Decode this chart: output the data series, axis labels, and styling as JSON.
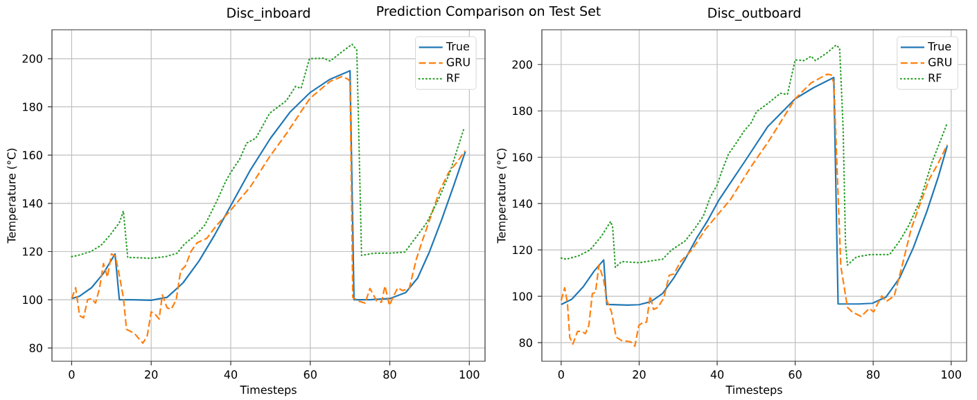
{
  "chart_data": [
    {
      "type": "other",
      "title": "Prediction Comparison on Test Set"
    },
    {
      "type": "line",
      "title": "Disc_inboard",
      "xlabel": "Timesteps",
      "ylabel": "Temperature (°C)",
      "xlim": [
        -4.95,
        103.95
      ],
      "ylim": [
        74.5,
        212
      ],
      "xticks": [
        0,
        20,
        40,
        60,
        80,
        100
      ],
      "yticks": [
        80,
        100,
        120,
        140,
        160,
        180,
        200
      ],
      "grid": true,
      "legend": "top right",
      "series": [
        {
          "name": "True",
          "color": "#1f77b4",
          "line_style": "solid",
          "x": [
            0,
            2,
            5,
            8,
            10.9,
            12,
            15,
            20,
            24,
            28,
            32,
            36,
            40,
            45,
            50,
            55,
            60,
            65,
            70,
            71,
            75,
            80,
            84,
            87,
            90,
            93,
            96,
            99
          ],
          "values": [
            100.5,
            101.5,
            105,
            111,
            119,
            100,
            100,
            99.8,
            101,
            107,
            116,
            127,
            139,
            154,
            167,
            178,
            186,
            191.5,
            195,
            100,
            100,
            100.5,
            103,
            109,
            120,
            133,
            147,
            161.5
          ]
        },
        {
          "name": "GRU",
          "color": "#ff7f0e",
          "line_style": "dashed",
          "x": [
            0,
            1,
            2,
            3,
            4,
            5,
            6,
            7,
            8,
            9,
            10,
            11,
            12,
            13,
            13.8,
            15.8,
            17.9,
            19,
            20,
            21,
            22,
            22.8,
            24,
            25,
            26.3,
            27.4,
            28.6,
            30,
            31.5,
            34,
            36.5,
            39.4,
            45,
            49.8,
            54,
            59.9,
            65,
            68,
            69.5,
            70,
            70.7,
            72,
            73.8,
            75,
            76.7,
            77.9,
            78.8,
            79.9,
            80.8,
            82,
            83.2,
            84.9,
            86.7,
            88.4,
            90.2,
            92.5,
            94.8,
            97.1,
            98.9
          ],
          "values": [
            100.5,
            105,
            93.4,
            92.5,
            100,
            100.5,
            98.6,
            104.7,
            115,
            109.4,
            119,
            118,
            110,
            101,
            87.7,
            86,
            82,
            85,
            95,
            94,
            92,
            102,
            96.7,
            96,
            100,
            112,
            114,
            120,
            123.6,
            125.5,
            131,
            136,
            147,
            159.4,
            168.9,
            183.5,
            190.6,
            192.6,
            191.5,
            190.6,
            101,
            99.5,
            98.6,
            104.7,
            99.5,
            99,
            105.7,
            97.6,
            101,
            105,
            103.8,
            104.7,
            117,
            125.5,
            134,
            145,
            152.8,
            157.5,
            161.8
          ]
        },
        {
          "name": "RF",
          "color": "#2ca02c",
          "line_style": "dotted",
          "x": [
            0,
            1.6,
            4.8,
            7.4,
            9.7,
            12,
            13,
            14.1,
            15.5,
            20,
            23.7,
            26.5,
            28.3,
            31.2,
            33.5,
            36.4,
            38.7,
            40,
            42.3,
            44,
            46.3,
            49.8,
            54,
            56.3,
            57.7,
            59.8,
            63.3,
            65,
            67.3,
            70.5,
            71.7,
            72.3,
            72.9,
            76,
            80,
            83.8,
            86.4,
            89.3,
            92.2,
            95.1,
            98.6
          ],
          "values": [
            117.9,
            118.4,
            120,
            122.6,
            126.9,
            132,
            136.8,
            117.5,
            117.5,
            117.2,
            117.9,
            119.3,
            123,
            126.9,
            131,
            140.6,
            149,
            152.8,
            158.5,
            165,
            167,
            177.4,
            182.6,
            188.5,
            187.7,
            200,
            200.2,
            199,
            202,
            206,
            203.6,
            162,
            118.4,
            119.3,
            119.3,
            119.8,
            125.5,
            132,
            141.5,
            152.8,
            170.8
          ]
        }
      ]
    },
    {
      "type": "line",
      "title": "Disc_outboard",
      "xlabel": "Timesteps",
      "ylabel": "Temperature (°C)",
      "xlim": [
        -4.95,
        103.95
      ],
      "ylim": [
        72,
        215
      ],
      "xticks": [
        0,
        20,
        40,
        60,
        80,
        100
      ],
      "yticks": [
        80,
        100,
        120,
        140,
        160,
        180,
        200
      ],
      "grid": true,
      "legend": "top right",
      "series": [
        {
          "name": "True",
          "color": "#1f77b4",
          "line_style": "solid",
          "x": [
            0,
            2.7,
            5.6,
            8.5,
            10.9,
            11.7,
            17,
            20,
            23,
            26,
            28.9,
            31.8,
            34.7,
            37.6,
            40.5,
            47.2,
            53,
            60,
            64.7,
            69.9,
            71,
            76.3,
            79.8,
            83.3,
            86.8,
            90.3,
            93.8,
            96.7,
            99
          ],
          "values": [
            96.5,
            98.7,
            104,
            111,
            115.7,
            96.5,
            96.2,
            96.4,
            97.7,
            101.2,
            108,
            116,
            125,
            132.8,
            141.7,
            158.5,
            173.3,
            185.2,
            190,
            194.4,
            96.7,
            96.7,
            97,
            99.7,
            108,
            121,
            136.8,
            151.6,
            165
          ]
        },
        {
          "name": "GRU",
          "color": "#ff7f0e",
          "line_style": "dashed",
          "x": [
            0,
            0.9,
            1.6,
            2.2,
            3,
            4.2,
            5.3,
            6.2,
            7.1,
            8,
            8.8,
            9.7,
            10.9,
            11.7,
            12.9,
            14.1,
            15.5,
            17.8,
            18.9,
            19.9,
            21,
            21.9,
            22.8,
            23.7,
            24.8,
            26.3,
            27.7,
            28.9,
            30.6,
            33.5,
            37,
            39.9,
            43.4,
            48.7,
            53,
            60,
            64.1,
            68.2,
            69.2,
            69.9,
            71.7,
            73.4,
            74.6,
            76.9,
            79,
            80.1,
            82.2,
            83.3,
            85.4,
            87.4,
            89.7,
            92,
            94.4,
            96.7,
            99
          ],
          "values": [
            98.2,
            103.7,
            97.2,
            82.4,
            79.4,
            84.9,
            84.9,
            83.9,
            87.4,
            101.2,
            101.7,
            113.5,
            107,
            98.2,
            93.3,
            82.4,
            80.9,
            80.4,
            78.5,
            87.4,
            88.8,
            88.8,
            100.2,
            94.3,
            95.3,
            99.2,
            109.1,
            109.6,
            115,
            120,
            128.9,
            134.8,
            141.7,
            156,
            166.4,
            185.2,
            192.1,
            195.8,
            195.6,
            192.1,
            113,
            95.3,
            93.3,
            91.3,
            94.8,
            93.3,
            100.2,
            97.7,
            100.2,
            113,
            128.9,
            139.7,
            150.6,
            157.5,
            165.4
          ]
        },
        {
          "name": "RF",
          "color": "#2ca02c",
          "line_style": "dotted",
          "x": [
            0,
            1.3,
            4.5,
            7.4,
            10.3,
            12.7,
            13.2,
            13.9,
            15.5,
            20,
            23.7,
            26,
            28.3,
            31.8,
            34.1,
            36.5,
            38.2,
            40,
            41.1,
            42.9,
            44.6,
            46.9,
            48.7,
            50.1,
            53,
            56.2,
            58,
            60,
            62.3,
            64.1,
            65.2,
            68.2,
            70.5,
            71.4,
            72.3,
            72.9,
            73.4,
            75.7,
            79.2,
            84.2,
            86.8,
            89.2,
            92.1,
            95,
            99
          ],
          "values": [
            116.5,
            116,
            117.5,
            120,
            125.9,
            132.3,
            129.8,
            112.5,
            115,
            114.5,
            115.5,
            116,
            120,
            123.9,
            128.9,
            134.8,
            142.7,
            148.1,
            153.5,
            161.4,
            165.4,
            171.3,
            174.8,
            179.7,
            183.2,
            187.6,
            187.1,
            202,
            201.7,
            203.6,
            201.7,
            205.1,
            208.4,
            207,
            172.3,
            122.9,
            113.5,
            117,
            118,
            118,
            123.9,
            130.8,
            141.7,
            157.5,
            174.8
          ]
        }
      ]
    }
  ]
}
